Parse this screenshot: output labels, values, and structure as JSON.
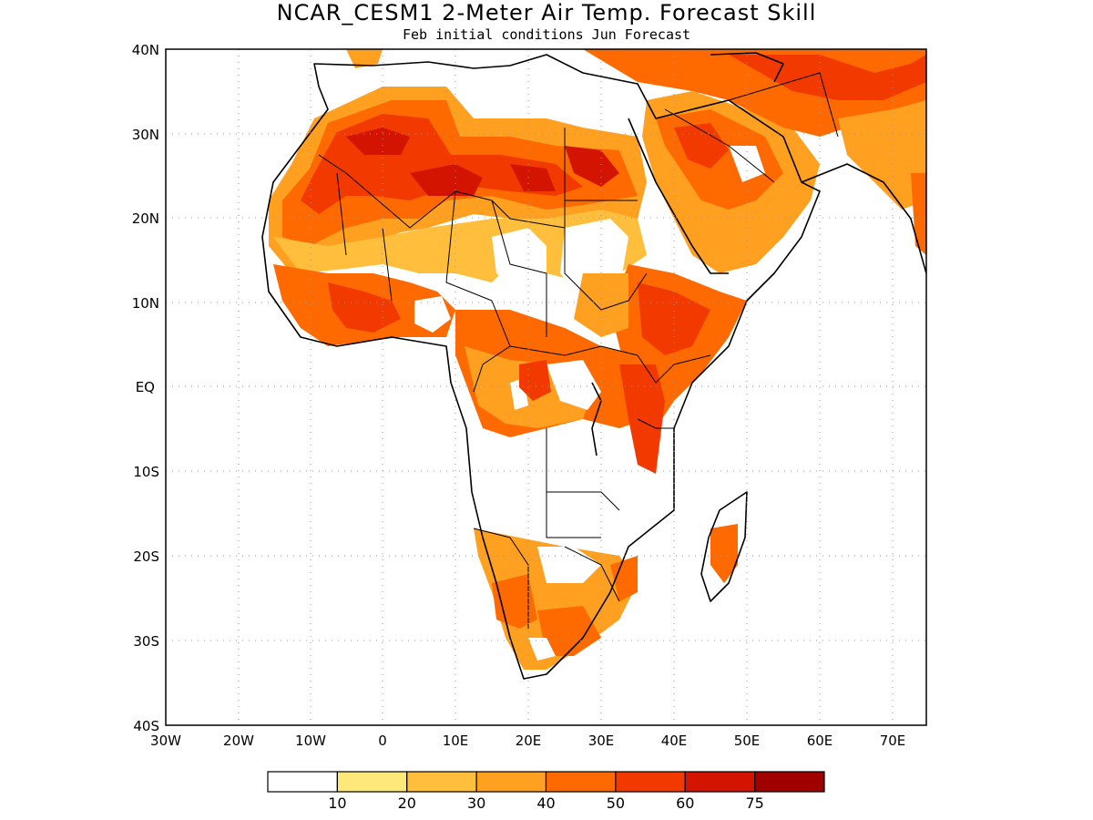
{
  "title": "NCAR_CESM1 2-Meter Air Temp. Forecast Skill",
  "subtitle": "Feb initial conditions  Jun Forecast",
  "axes": {
    "y_ticks": [
      "40N",
      "30N",
      "20N",
      "10N",
      "EQ",
      "10S",
      "20S",
      "30S",
      "40S"
    ],
    "x_ticks": [
      "30W",
      "20W",
      "10W",
      "0",
      "10E",
      "20E",
      "30E",
      "40E",
      "50E",
      "60E",
      "70E"
    ]
  },
  "colorbar": {
    "labels": [
      "10",
      "20",
      "30",
      "40",
      "50",
      "60",
      "75"
    ],
    "colors": [
      "#ffffff",
      "#ffe87a",
      "#ffbe3c",
      "#ffa020",
      "#ff6a00",
      "#f23a00",
      "#d21400",
      "#a00000"
    ]
  }
}
